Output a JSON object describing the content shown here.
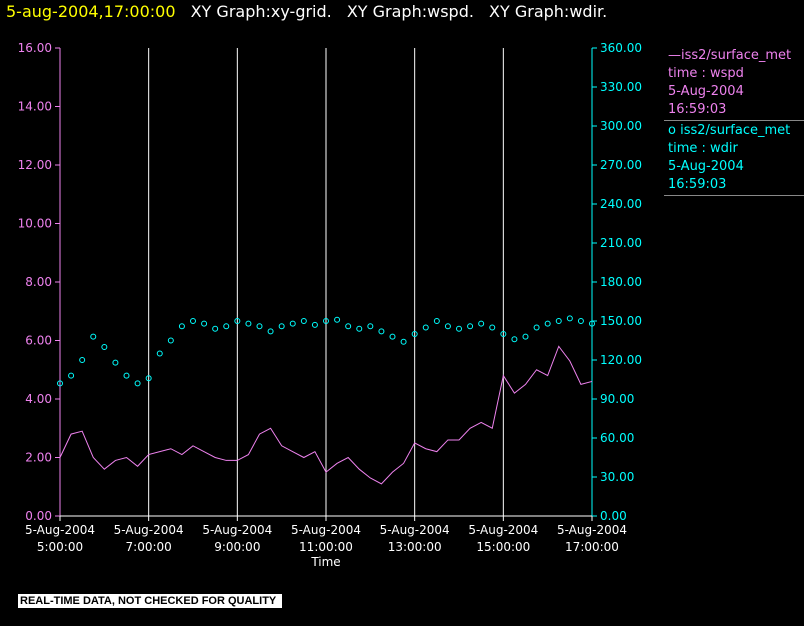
{
  "header": {
    "timestamp": "5-aug-2004,17:00:00",
    "graph_titles": [
      "XY Graph:xy-grid.",
      "XY Graph:wspd.",
      "XY Graph:wdir."
    ]
  },
  "legend": [
    {
      "marker": "—",
      "lines": [
        "iss2/surface_met",
        "time : wspd",
        "5-Aug-2004",
        "16:59:03"
      ],
      "color": "#ee82ee"
    },
    {
      "marker": "o",
      "lines": [
        "iss2/surface_met",
        "time : wdir",
        "5-Aug-2004",
        "16:59:03"
      ],
      "color": "#00ffff"
    }
  ],
  "footer": "REAL-TIME DATA, NOT CHECKED FOR QUALITY",
  "chart_data": {
    "type": "line",
    "xlabel": "Time",
    "x_ticks": [
      {
        "date": "5-Aug-2004",
        "time": "5:00:00",
        "hour": 5
      },
      {
        "date": "5-Aug-2004",
        "time": "7:00:00",
        "hour": 7
      },
      {
        "date": "5-Aug-2004",
        "time": "9:00:00",
        "hour": 9
      },
      {
        "date": "5-Aug-2004",
        "time": "11:00:00",
        "hour": 11
      },
      {
        "date": "5-Aug-2004",
        "time": "13:00:00",
        "hour": 13
      },
      {
        "date": "5-Aug-2004",
        "time": "15:00:00",
        "hour": 15
      },
      {
        "date": "5-Aug-2004",
        "time": "17:00:00",
        "hour": 17
      }
    ],
    "xlim_hours": [
      5,
      17
    ],
    "left_axis": {
      "ylim": [
        0,
        16
      ],
      "ticks": [
        "0.00",
        "2.00",
        "4.00",
        "6.00",
        "8.00",
        "10.00",
        "12.00",
        "14.00",
        "16.00"
      ],
      "color": "#ee82ee"
    },
    "right_axis": {
      "ylim": [
        0,
        360
      ],
      "ticks": [
        "0.00",
        "30.00",
        "60.00",
        "90.00",
        "120.00",
        "150.00",
        "180.00",
        "210.00",
        "240.00",
        "270.00",
        "300.00",
        "330.00",
        "360.00"
      ],
      "color": "#00ffff"
    },
    "grid": "vertical lines at major x ticks",
    "series": [
      {
        "name": "iss2/surface_met time : wspd",
        "axis": "left",
        "style": "line",
        "color": "#ee82ee",
        "hours": [
          5.0,
          5.25,
          5.5,
          5.75,
          6.0,
          6.25,
          6.5,
          6.75,
          7.0,
          7.25,
          7.5,
          7.75,
          8.0,
          8.25,
          8.5,
          8.75,
          9.0,
          9.25,
          9.5,
          9.75,
          10.0,
          10.25,
          10.5,
          10.75,
          11.0,
          11.25,
          11.5,
          11.75,
          12.0,
          12.25,
          12.5,
          12.75,
          13.0,
          13.25,
          13.5,
          13.75,
          14.0,
          14.25,
          14.5,
          14.75,
          15.0,
          15.25,
          15.5,
          15.75,
          16.0,
          16.25,
          16.5,
          16.75,
          17.0
        ],
        "values": [
          2.0,
          2.8,
          2.9,
          2.0,
          1.6,
          1.9,
          2.0,
          1.7,
          2.1,
          2.2,
          2.3,
          2.1,
          2.4,
          2.2,
          2.0,
          1.9,
          1.9,
          2.1,
          2.8,
          3.0,
          2.4,
          2.2,
          2.0,
          2.2,
          1.5,
          1.8,
          2.0,
          1.6,
          1.3,
          1.1,
          1.5,
          1.8,
          2.5,
          2.3,
          2.2,
          2.6,
          2.6,
          3.0,
          3.2,
          3.0,
          4.8,
          4.2,
          4.5,
          5.0,
          4.8,
          5.8,
          5.3,
          4.5,
          4.6
        ]
      },
      {
        "name": "iss2/surface_met time : wdir",
        "axis": "right",
        "style": "markers",
        "color": "#00ffff",
        "hours": [
          5.0,
          5.25,
          5.5,
          5.75,
          6.0,
          6.25,
          6.5,
          6.75,
          7.0,
          7.25,
          7.5,
          7.75,
          8.0,
          8.25,
          8.5,
          8.75,
          9.0,
          9.25,
          9.5,
          9.75,
          10.0,
          10.25,
          10.5,
          10.75,
          11.0,
          11.25,
          11.5,
          11.75,
          12.0,
          12.25,
          12.5,
          12.75,
          13.0,
          13.25,
          13.5,
          13.75,
          14.0,
          14.25,
          14.5,
          14.75,
          15.0,
          15.25,
          15.5,
          15.75,
          16.0,
          16.25,
          16.5,
          16.75,
          17.0
        ],
        "values": [
          102,
          108,
          120,
          138,
          130,
          118,
          108,
          102,
          106,
          125,
          135,
          146,
          150,
          148,
          144,
          146,
          150,
          148,
          146,
          142,
          146,
          148,
          150,
          147,
          150,
          151,
          146,
          144,
          146,
          142,
          138,
          134,
          140,
          145,
          150,
          146,
          144,
          146,
          148,
          145,
          140,
          136,
          138,
          145,
          148,
          150,
          152,
          150,
          148
        ]
      }
    ]
  }
}
